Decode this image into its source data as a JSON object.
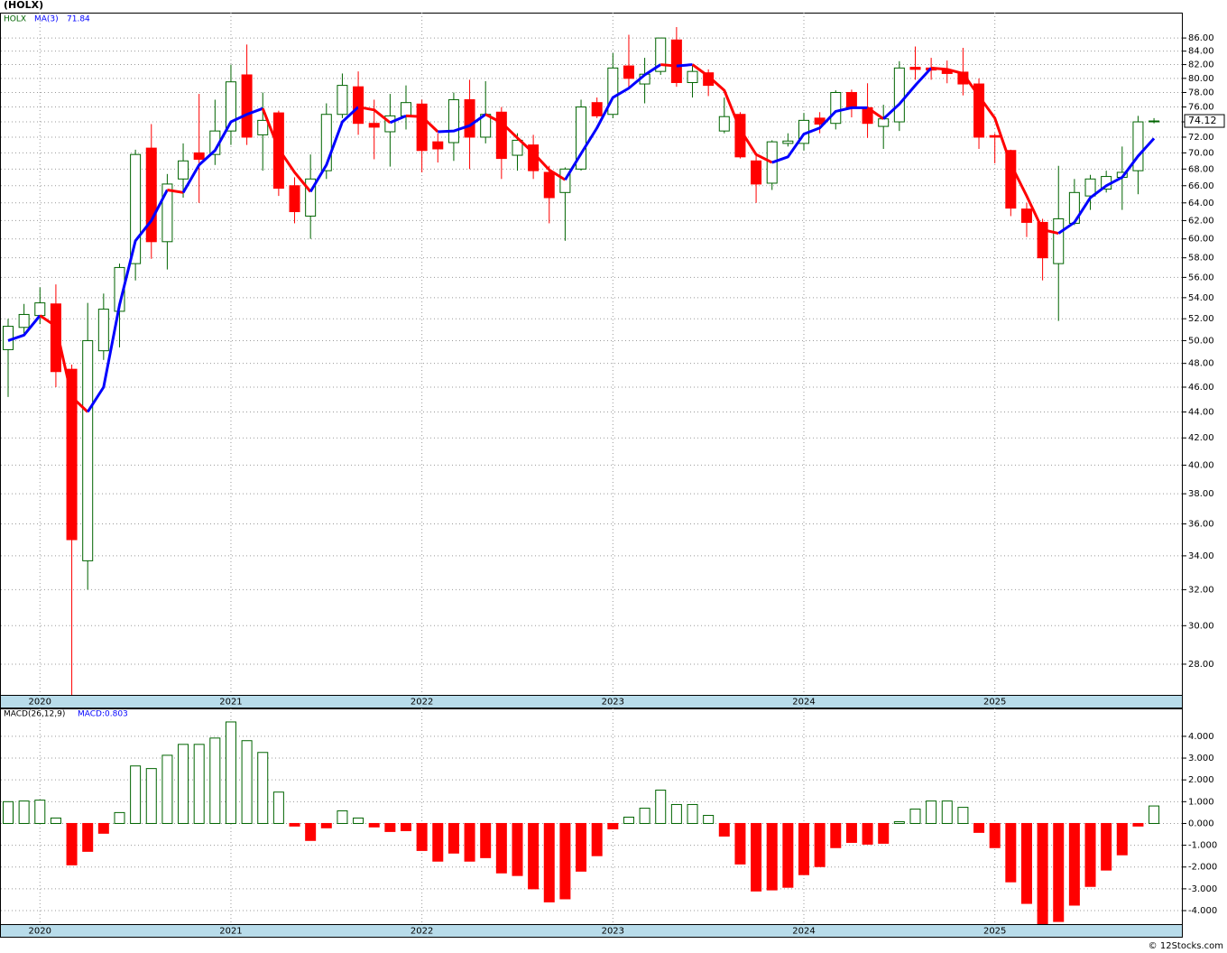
{
  "chart_data": [
    {
      "type": "candlestick",
      "title": "(HOLX)",
      "ticker": "HOLX",
      "categories": [
        null,
        null,
        "2020",
        null,
        null,
        null,
        null,
        null,
        null,
        null,
        null,
        null,
        null,
        null,
        "2021",
        null,
        null,
        null,
        null,
        null,
        null,
        null,
        null,
        null,
        null,
        null,
        "2022",
        null,
        null,
        null,
        null,
        null,
        null,
        null,
        null,
        null,
        null,
        null,
        "2023",
        null,
        null,
        null,
        null,
        null,
        null,
        null,
        null,
        null,
        null,
        null,
        "2024",
        null,
        null,
        null,
        null,
        null,
        null,
        null,
        null,
        null,
        null,
        null,
        "2025",
        null,
        null,
        null,
        null,
        null,
        null,
        null,
        null,
        null,
        null
      ],
      "open": [
        49.2,
        51.2,
        52.3,
        53.4,
        47.5,
        33.7,
        49.1,
        52.7,
        57.4,
        70.6,
        59.7,
        66.8,
        70,
        69.8,
        72.8,
        80.5,
        72.3,
        75.2,
        66,
        62.5,
        67.8,
        75,
        78.8,
        73.8,
        72.7,
        74.8,
        76.4,
        71.4,
        71.3,
        77,
        72,
        75.3,
        69.7,
        71,
        67.6,
        65.2,
        68,
        76.6,
        75,
        81.8,
        79.2,
        81,
        85.7,
        79.4,
        80.8,
        72.8,
        75,
        69,
        66.3,
        71.2,
        71.2,
        74.5,
        73.8,
        78,
        75.9,
        73.4,
        74,
        81.6,
        81.5,
        81.2,
        80.9,
        79.2,
        72.2,
        70.3,
        63.3,
        61.8,
        57.4,
        61.7,
        64.8,
        65.6,
        67,
        67.8,
        74
      ],
      "high": [
        52,
        53.4,
        55,
        55.3,
        47.9,
        53.5,
        54.4,
        57.4,
        70.4,
        73.7,
        67.4,
        71.2,
        77.8,
        77,
        82,
        85,
        78,
        75.5,
        67,
        69.8,
        76.5,
        80.7,
        81,
        77,
        77.8,
        79,
        77,
        72.5,
        78,
        79.8,
        79.6,
        76,
        72.5,
        72.3,
        68.4,
        68.2,
        77,
        77.3,
        83.7,
        86.5,
        83,
        86,
        87.7,
        82,
        81.3,
        77.3,
        75.3,
        69.8,
        71.6,
        72.5,
        75.2,
        75.3,
        78.3,
        78.4,
        79.3,
        76.3,
        82.5,
        84.7,
        83,
        82.6,
        84.5,
        80,
        72.5,
        70.4,
        64,
        62.2,
        68.4,
        66.8,
        67.3,
        67.8,
        70.8,
        74.8,
        74.5
      ],
      "low": [
        45.2,
        50.5,
        51.5,
        46,
        26.5,
        32,
        48.3,
        49.4,
        55.7,
        57.9,
        56.8,
        64.6,
        64,
        68.5,
        71,
        71,
        67.8,
        64.8,
        61.7,
        60,
        66.8,
        74.5,
        72.3,
        69.2,
        68.3,
        73,
        67.6,
        68.8,
        69,
        68,
        71.2,
        66.8,
        67.8,
        66.8,
        61.7,
        59.8,
        67.8,
        74.5,
        74.5,
        78.6,
        76.5,
        80.5,
        78.8,
        77.3,
        77.5,
        72.5,
        69.3,
        64,
        65.5,
        70.8,
        70.3,
        72.5,
        73,
        74.6,
        71.9,
        70.5,
        72.8,
        79.8,
        79.8,
        79.3,
        77.6,
        70.5,
        68.7,
        62.5,
        60.2,
        55.7,
        51.8,
        61.5,
        63.2,
        65.2,
        63.2,
        65,
        73.8
      ],
      "close": [
        51.3,
        52.4,
        53.5,
        47.3,
        35,
        50,
        52.9,
        57,
        69.8,
        59.7,
        66.2,
        69,
        69.2,
        72.8,
        79.5,
        72,
        74.2,
        65.7,
        63,
        66.8,
        75,
        79,
        73.8,
        73.3,
        74.8,
        76.6,
        70.3,
        70.5,
        77,
        72,
        75,
        69.3,
        71.6,
        67.8,
        64.6,
        68,
        76,
        74.8,
        81.5,
        80,
        80.6,
        86,
        79.4,
        81,
        79,
        74.7,
        69.5,
        66.2,
        71.4,
        71.5,
        74.2,
        73.7,
        78,
        75.9,
        73.8,
        74.4,
        81.5,
        81.3,
        81.2,
        80.7,
        79.2,
        72,
        72,
        63.4,
        61.8,
        58,
        62.2,
        65.2,
        66.8,
        67.1,
        67.6,
        74,
        74.12
      ],
      "up_color": "#006400",
      "down_color": "#ff0000",
      "ma": {
        "name": "MA(3)",
        "rising_color": "#0000ff",
        "falling_color": "#ff0000",
        "values": [
          50,
          50.5,
          52.3,
          51.3,
          45.2,
          44,
          46,
          53.3,
          59.8,
          62,
          65.5,
          65.2,
          68.5,
          70.3,
          74,
          75,
          75.8,
          70.5,
          67.6,
          65.3,
          68.5,
          74,
          76,
          75.6,
          73.9,
          74.8,
          74.7,
          72.7,
          72.8,
          73.5,
          75,
          73.9,
          71.9,
          70,
          67.9,
          66.7,
          69.9,
          73.2,
          77.3,
          78.6,
          80.5,
          82,
          81.8,
          82,
          80.3,
          78.3,
          73,
          69.8,
          68.8,
          69.5,
          72.4,
          73.2,
          75.4,
          75.9,
          75.9,
          74.4,
          76.4,
          79,
          81.5,
          81.3,
          80.7,
          77.5,
          74.5,
          68.6,
          64.8,
          61,
          60.6,
          61.8,
          64.6,
          66,
          67,
          69.6,
          71.84
        ]
      },
      "log_scale": true,
      "grid": true,
      "ylim": [
        26.5,
        90
      ],
      "yticks": [
        {
          "value": 28,
          "label": "28.00"
        },
        {
          "value": 30,
          "label": "30.00"
        },
        {
          "value": 32,
          "label": "32.00"
        },
        {
          "value": 34,
          "label": "34.00"
        },
        {
          "value": 36,
          "label": "36.00"
        },
        {
          "value": 38,
          "label": "38.00"
        },
        {
          "value": 40,
          "label": "40.00"
        },
        {
          "value": 42,
          "label": "42.00"
        },
        {
          "value": 44,
          "label": "44.00"
        },
        {
          "value": 46,
          "label": "46.00"
        },
        {
          "value": 48,
          "label": "48.00"
        },
        {
          "value": 50,
          "label": "50.00"
        },
        {
          "value": 52,
          "label": "52.00"
        },
        {
          "value": 54,
          "label": "54.00"
        },
        {
          "value": 56,
          "label": "56.00"
        },
        {
          "value": 58,
          "label": "58.00"
        },
        {
          "value": 60,
          "label": "60.00"
        },
        {
          "value": 62,
          "label": "62.00"
        },
        {
          "value": 64,
          "label": "64.00"
        },
        {
          "value": 66,
          "label": "66.00"
        },
        {
          "value": 68,
          "label": "68.00"
        },
        {
          "value": 70,
          "label": "70.00"
        },
        {
          "value": 72,
          "label": "72.00"
        },
        {
          "value": 74,
          "label": "74.00"
        },
        {
          "value": 76,
          "label": "76.00"
        },
        {
          "value": 78,
          "label": "78.00"
        },
        {
          "value": 80,
          "label": "80.00"
        },
        {
          "value": 82,
          "label": "82.00"
        },
        {
          "value": 84,
          "label": "84.00"
        },
        {
          "value": 86,
          "label": "86.00"
        }
      ]
    },
    {
      "type": "bar",
      "indicator": "MACD(26,12,9)",
      "readout": "MACD:0.803",
      "values": [
        1,
        1.03,
        1.07,
        0.25,
        -1.9,
        -1.28,
        -0.45,
        0.5,
        2.64,
        2.52,
        3.13,
        3.63,
        3.63,
        3.92,
        4.66,
        3.8,
        3.26,
        1.44,
        -0.12,
        -0.78,
        -0.2,
        0.58,
        0.25,
        -0.16,
        -0.37,
        -0.33,
        -1.24,
        -1.73,
        -1.36,
        -1.73,
        -1.57,
        -2.27,
        -2.39,
        -3,
        -3.6,
        -3.46,
        -2.19,
        -1.48,
        -0.25,
        0.29,
        0.7,
        1.53,
        0.87,
        0.87,
        0.37,
        -0.58,
        -1.86,
        -3.1,
        -3.05,
        -2.93,
        -2.35,
        -1.98,
        -1.11,
        -0.87,
        -0.95,
        -0.91,
        0.08,
        0.66,
        1.03,
        1.03,
        0.74,
        -0.41,
        -1.11,
        -2.68,
        -3.67,
        -4.8,
        -4.5,
        -3.75,
        -2.89,
        -2.14,
        -1.44,
        -0.12,
        0.803
      ],
      "positive_color": "#006400",
      "negative_color": "#ff0000",
      "grid": true,
      "ylim": [
        -4.62,
        5.28
      ],
      "yticks": [
        {
          "value": 4,
          "label": "4.000"
        },
        {
          "value": 3,
          "label": "3.000"
        },
        {
          "value": 2,
          "label": "2.000"
        },
        {
          "value": 1,
          "label": "1.000"
        },
        {
          "value": 0,
          "label": "0.000"
        },
        {
          "value": -1,
          "label": "-1.000"
        },
        {
          "value": -2,
          "label": "-2.000"
        },
        {
          "value": -3,
          "label": "-3.000"
        },
        {
          "value": -4,
          "label": "-4.000"
        }
      ]
    }
  ],
  "footer": "© 12Stocks.com"
}
